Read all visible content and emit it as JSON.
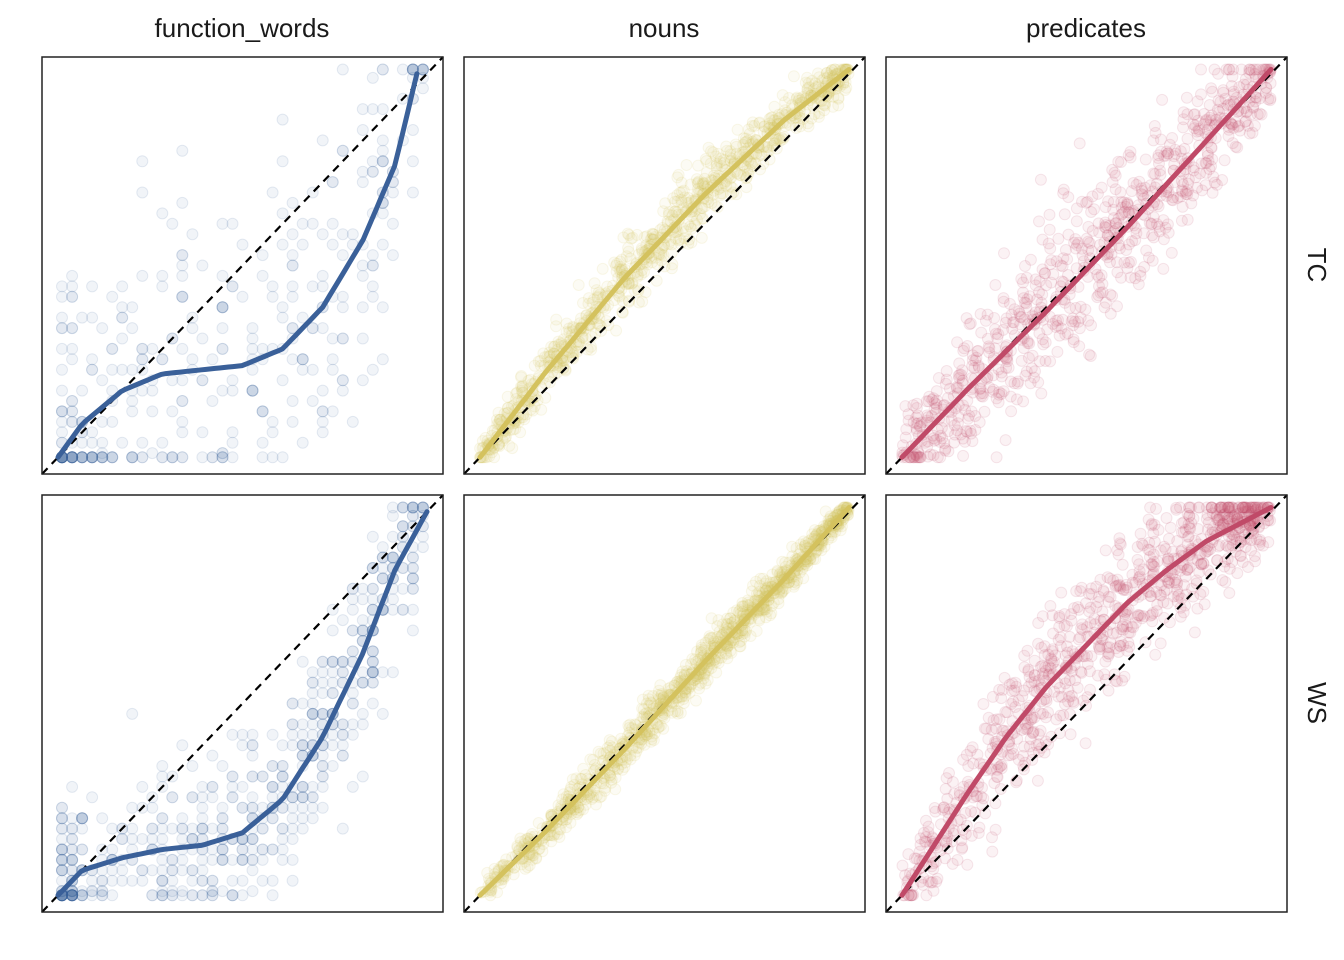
{
  "chart_data": {
    "type": "scatter",
    "title": "",
    "xlabel": "",
    "ylabel": "",
    "xlim": [
      0,
      1
    ],
    "ylim": [
      0,
      1
    ],
    "grid": false,
    "legend": "none",
    "columns": [
      "function_words",
      "nouns",
      "predicates"
    ],
    "rows": [
      "TC",
      "WS"
    ],
    "reference_line": "y = x (dashed)",
    "colors": {
      "function_words": "#3A6099",
      "nouns": "#D4C25E",
      "predicates": "#C04A68"
    },
    "panels": [
      {
        "column": "function_words",
        "row": "TC",
        "trend": [
          [
            0.04,
            0.04
          ],
          [
            0.1,
            0.12
          ],
          [
            0.2,
            0.2
          ],
          [
            0.3,
            0.24
          ],
          [
            0.4,
            0.25
          ],
          [
            0.5,
            0.26
          ],
          [
            0.6,
            0.3
          ],
          [
            0.7,
            0.4
          ],
          [
            0.8,
            0.56
          ],
          [
            0.88,
            0.74
          ],
          [
            0.935,
            0.96
          ]
        ],
        "cluster": {
          "x_mean": 0.5,
          "spread": 0.2,
          "n": 380
        }
      },
      {
        "column": "nouns",
        "row": "TC",
        "trend": [
          [
            0.04,
            0.04
          ],
          [
            0.2,
            0.24
          ],
          [
            0.4,
            0.47
          ],
          [
            0.6,
            0.67
          ],
          [
            0.8,
            0.85
          ],
          [
            0.96,
            0.97
          ]
        ],
        "cluster": {
          "x_mean": 0.5,
          "spread": 0.03,
          "n": 900
        }
      },
      {
        "column": "predicates",
        "row": "TC",
        "trend": [
          [
            0.04,
            0.04
          ],
          [
            0.2,
            0.2
          ],
          [
            0.4,
            0.39
          ],
          [
            0.6,
            0.59
          ],
          [
            0.8,
            0.8
          ],
          [
            0.96,
            0.97
          ]
        ],
        "cluster": {
          "x_mean": 0.5,
          "spread": 0.07,
          "n": 800
        }
      },
      {
        "column": "function_words",
        "row": "WS",
        "trend": [
          [
            0.04,
            0.04
          ],
          [
            0.1,
            0.1
          ],
          [
            0.2,
            0.13
          ],
          [
            0.3,
            0.15
          ],
          [
            0.4,
            0.16
          ],
          [
            0.5,
            0.19
          ],
          [
            0.6,
            0.27
          ],
          [
            0.7,
            0.42
          ],
          [
            0.8,
            0.62
          ],
          [
            0.88,
            0.82
          ],
          [
            0.96,
            0.96
          ]
        ],
        "cluster": {
          "x_mean": 0.6,
          "spread": 0.1,
          "n": 600
        }
      },
      {
        "column": "nouns",
        "row": "WS",
        "trend": [
          [
            0.04,
            0.04
          ],
          [
            0.2,
            0.19
          ],
          [
            0.4,
            0.39
          ],
          [
            0.6,
            0.6
          ],
          [
            0.8,
            0.8
          ],
          [
            0.96,
            0.97
          ]
        ],
        "cluster": {
          "x_mean": 0.55,
          "spread": 0.02,
          "n": 1100
        }
      },
      {
        "column": "predicates",
        "row": "WS",
        "trend": [
          [
            0.04,
            0.04
          ],
          [
            0.1,
            0.13
          ],
          [
            0.2,
            0.28
          ],
          [
            0.3,
            0.42
          ],
          [
            0.4,
            0.54
          ],
          [
            0.5,
            0.64
          ],
          [
            0.6,
            0.74
          ],
          [
            0.7,
            0.82
          ],
          [
            0.8,
            0.89
          ],
          [
            0.9,
            0.94
          ],
          [
            0.96,
            0.97
          ]
        ],
        "cluster": {
          "x_mean": 0.55,
          "spread": 0.06,
          "n": 900
        }
      }
    ]
  }
}
